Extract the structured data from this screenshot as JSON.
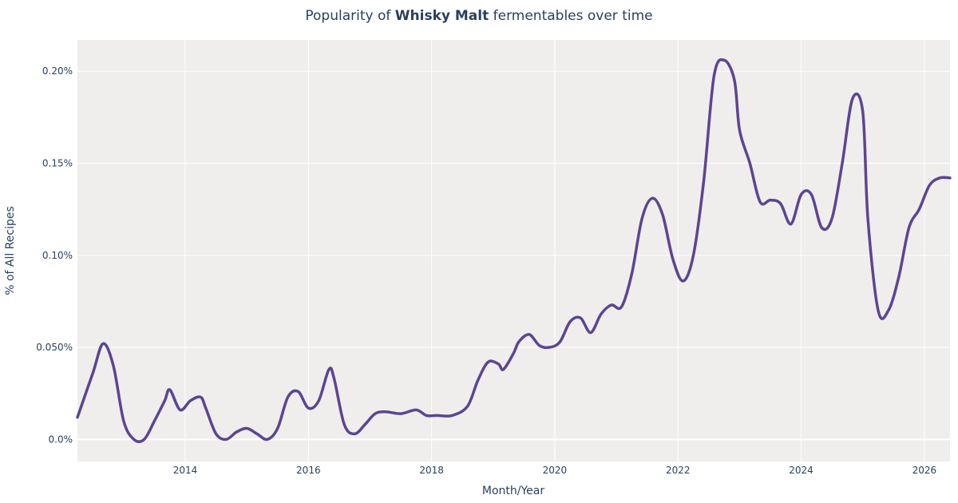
{
  "title": {
    "prefix": "Popularity of ",
    "bold": "Whisky Malt",
    "suffix": " fermentables over time"
  },
  "chart_data": {
    "type": "line",
    "xlabel": "Month/Year",
    "ylabel": "% of All Recipes",
    "x_range": [
      "2012-04",
      "2026-06"
    ],
    "ylim": [
      -0.012,
      0.217
    ],
    "x_ticks": [
      {
        "value": "2014-01",
        "label": "2014"
      },
      {
        "value": "2016-01",
        "label": "2016"
      },
      {
        "value": "2018-01",
        "label": "2018"
      },
      {
        "value": "2020-01",
        "label": "2020"
      },
      {
        "value": "2022-01",
        "label": "2022"
      },
      {
        "value": "2024-01",
        "label": "2024"
      },
      {
        "value": "2026-01",
        "label": "2026"
      }
    ],
    "y_ticks": [
      {
        "value": 0.0,
        "label": "0.0%"
      },
      {
        "value": 0.05,
        "label": "0.050%"
      },
      {
        "value": 0.1,
        "label": "0.10%"
      },
      {
        "value": 0.15,
        "label": "0.15%"
      },
      {
        "value": 0.2,
        "label": "0.20%"
      }
    ],
    "grid": true,
    "legend": false,
    "colors": {
      "line": "#5c4591",
      "plot_bg": "#efeeed",
      "grid": "#ffffff",
      "zero_line": "#ffffff"
    },
    "series": [
      {
        "x": [
          "2012-04",
          "2012-07",
          "2012-09",
          "2012-11",
          "2013-01",
          "2013-03",
          "2013-05",
          "2013-07",
          "2013-09",
          "2013-10",
          "2013-12",
          "2014-02",
          "2014-04",
          "2014-05",
          "2014-07",
          "2014-09",
          "2014-11",
          "2015-01",
          "2015-03",
          "2015-05",
          "2015-07",
          "2015-09",
          "2015-11",
          "2016-01",
          "2016-03",
          "2016-05",
          "2016-06",
          "2016-08",
          "2016-10",
          "2016-12",
          "2017-02",
          "2017-04",
          "2017-07",
          "2017-10",
          "2017-12",
          "2018-02",
          "2018-05",
          "2018-08",
          "2018-10",
          "2018-12",
          "2019-02",
          "2019-03",
          "2019-05",
          "2019-06",
          "2019-08",
          "2019-10",
          "2019-12",
          "2020-02",
          "2020-04",
          "2020-06",
          "2020-08",
          "2020-10",
          "2020-12",
          "2021-02",
          "2021-04",
          "2021-06",
          "2021-08",
          "2021-10",
          "2021-12",
          "2022-02",
          "2022-04",
          "2022-06",
          "2022-08",
          "2022-10",
          "2022-12",
          "2023-01",
          "2023-03",
          "2023-05",
          "2023-07",
          "2023-09",
          "2023-11",
          "2024-01",
          "2024-03",
          "2024-05",
          "2024-07",
          "2024-09",
          "2024-11",
          "2025-01",
          "2025-02",
          "2025-04",
          "2025-06",
          "2025-08",
          "2025-10",
          "2025-12",
          "2026-02",
          "2026-04",
          "2026-06"
        ],
        "y": [
          0.012,
          0.036,
          0.052,
          0.04,
          0.01,
          0.0,
          0.0,
          0.01,
          0.021,
          0.027,
          0.016,
          0.021,
          0.023,
          0.017,
          0.003,
          0.0,
          0.004,
          0.006,
          0.003,
          0.0,
          0.006,
          0.023,
          0.026,
          0.017,
          0.021,
          0.038,
          0.033,
          0.008,
          0.003,
          0.008,
          0.014,
          0.015,
          0.014,
          0.016,
          0.013,
          0.013,
          0.013,
          0.018,
          0.032,
          0.042,
          0.041,
          0.038,
          0.047,
          0.053,
          0.057,
          0.051,
          0.05,
          0.053,
          0.064,
          0.066,
          0.058,
          0.068,
          0.073,
          0.072,
          0.09,
          0.12,
          0.131,
          0.122,
          0.098,
          0.086,
          0.1,
          0.14,
          0.197,
          0.206,
          0.195,
          0.168,
          0.15,
          0.129,
          0.13,
          0.128,
          0.117,
          0.133,
          0.133,
          0.115,
          0.12,
          0.15,
          0.185,
          0.178,
          0.12,
          0.07,
          0.07,
          0.088,
          0.115,
          0.125,
          0.138,
          0.142,
          0.142
        ]
      }
    ]
  }
}
